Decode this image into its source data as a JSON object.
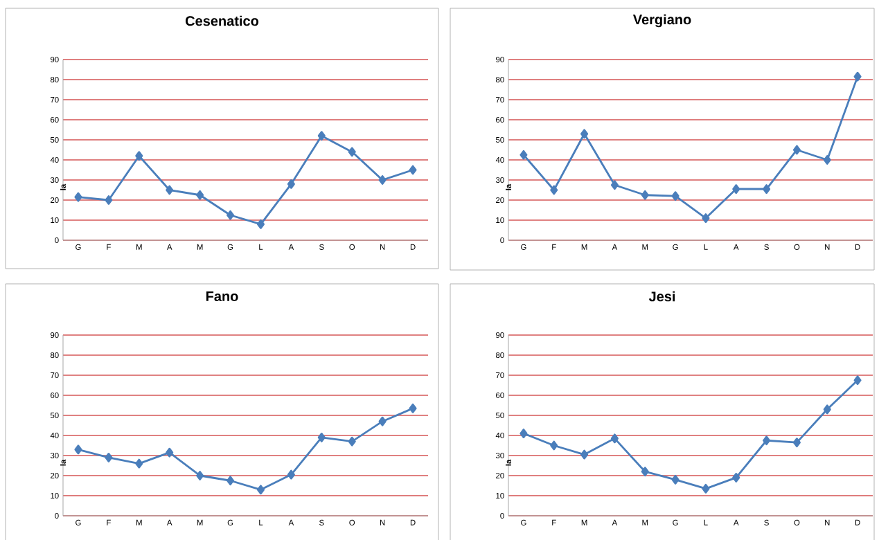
{
  "chart_data": [
    {
      "type": "line",
      "title": "Cesenatico",
      "ylabel": "Ia",
      "categories": [
        "G",
        "F",
        "M",
        "A",
        "M",
        "G",
        "L",
        "A",
        "S",
        "O",
        "N",
        "D"
      ],
      "values": [
        21.5,
        20,
        42,
        25,
        22.5,
        12.5,
        8,
        28,
        52,
        44,
        30,
        35
      ],
      "color": "#4a7ebb",
      "ylim": [
        0,
        90
      ],
      "yticks": [
        0,
        10,
        20,
        30,
        40,
        50,
        60,
        70,
        80,
        90
      ],
      "grid": "y",
      "marker": "diamond"
    },
    {
      "type": "line",
      "title": "Vergiano",
      "ylabel": "Ia",
      "categories": [
        "G",
        "F",
        "M",
        "A",
        "M",
        "G",
        "L",
        "A",
        "S",
        "O",
        "N",
        "D"
      ],
      "values": [
        42.5,
        25,
        53,
        27.5,
        22.5,
        22,
        11,
        25.5,
        25.5,
        45,
        40,
        81.5
      ],
      "color": "#4a7ebb",
      "ylim": [
        0,
        90
      ],
      "yticks": [
        0,
        10,
        20,
        30,
        40,
        50,
        60,
        70,
        80,
        90
      ],
      "grid": "y",
      "marker": "diamond"
    },
    {
      "type": "line",
      "title": "Fano",
      "ylabel": "Ia",
      "categories": [
        "G",
        "F",
        "M",
        "A",
        "M",
        "G",
        "L",
        "A",
        "S",
        "O",
        "N",
        "D"
      ],
      "values": [
        33,
        29,
        26,
        31.5,
        20,
        17.5,
        13,
        20.5,
        39,
        37,
        47,
        53.5
      ],
      "color": "#4a7ebb",
      "ylim": [
        0,
        90
      ],
      "yticks": [
        0,
        10,
        20,
        30,
        40,
        50,
        60,
        70,
        80,
        90
      ],
      "grid": "y",
      "marker": "diamond"
    },
    {
      "type": "line",
      "title": "Jesi",
      "ylabel": "Ia",
      "categories": [
        "G",
        "F",
        "M",
        "A",
        "M",
        "G",
        "L",
        "A",
        "S",
        "O",
        "N",
        "D"
      ],
      "values": [
        41,
        35,
        30.5,
        38.5,
        22,
        18,
        13.5,
        19,
        37.5,
        36.5,
        53,
        67.5
      ],
      "color": "#4a7ebb",
      "ylim": [
        0,
        90
      ],
      "yticks": [
        0,
        10,
        20,
        30,
        40,
        50,
        60,
        70,
        80,
        90
      ],
      "grid": "y",
      "marker": "diamond"
    }
  ]
}
